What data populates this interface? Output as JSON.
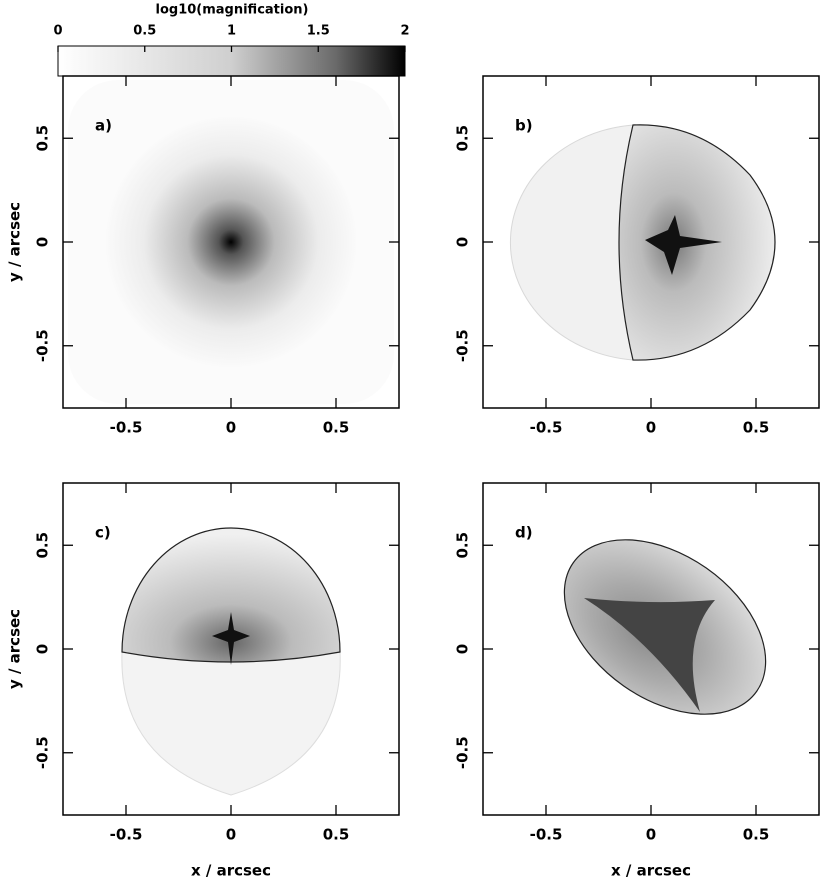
{
  "chart_data": [
    {
      "type": "image",
      "label": "a)",
      "xlim": [
        -0.8,
        0.8
      ],
      "ylim": [
        -0.8,
        0.8
      ],
      "xticks": [
        -0.5,
        0,
        0.5
      ],
      "yticks": [
        -0.5,
        0,
        0.5
      ],
      "ylabel": "y / arcsec",
      "colorbar": {
        "label": "log10(magnification)",
        "lim": [
          0,
          2
        ],
        "ticks": [
          0,
          0.5,
          1,
          1.5,
          2
        ]
      }
    },
    {
      "type": "image",
      "label": "b)",
      "xlim": [
        -0.8,
        0.8
      ],
      "ylim": [
        -0.8,
        0.8
      ],
      "xticks": [
        -0.5,
        0,
        0.5
      ],
      "yticks": [
        -0.5,
        0,
        0.5
      ]
    },
    {
      "type": "image",
      "label": "c)",
      "xlim": [
        -0.8,
        0.8
      ],
      "ylim": [
        -0.8,
        0.8
      ],
      "xticks": [
        -0.5,
        0,
        0.5
      ],
      "yticks": [
        -0.5,
        0,
        0.5
      ],
      "xlabel": "x / arcsec",
      "ylabel": "y / arcsec"
    },
    {
      "type": "image",
      "label": "d)",
      "xlim": [
        -0.8,
        0.8
      ],
      "ylim": [
        -0.8,
        0.8
      ],
      "xticks": [
        -0.5,
        0,
        0.5
      ],
      "yticks": [
        -0.5,
        0,
        0.5
      ],
      "xlabel": "x / arcsec"
    }
  ]
}
